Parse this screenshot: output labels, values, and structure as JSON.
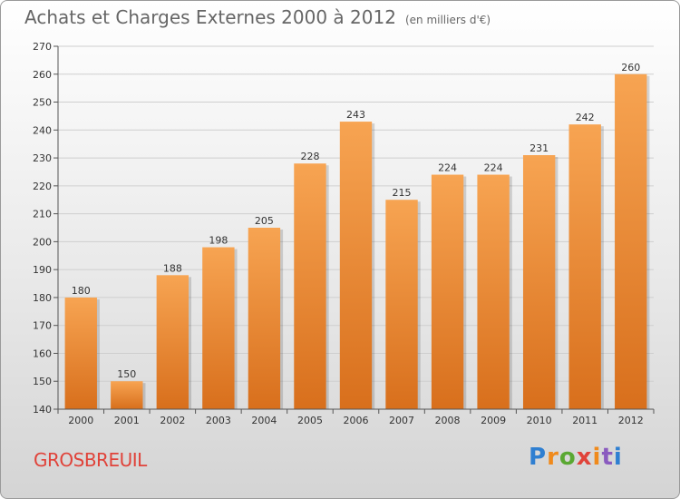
{
  "header": {
    "title": "Achats et Charges Externes 2000 à 2012",
    "unit": "(en milliers d'€)"
  },
  "footer": {
    "commune": "GROSBREUIL",
    "logo_letters": [
      "P",
      "r",
      "o",
      "x",
      "i",
      "t",
      "i"
    ]
  },
  "colors": {
    "bar_top": "#f7a452",
    "bar_bottom": "#d86f1c",
    "grid": "#cfcfcf",
    "axis": "#555555",
    "commune": "#e0433a"
  },
  "chart_data": {
    "type": "bar",
    "title": "Achats et Charges Externes 2000 à 2012",
    "subtitle": "(en milliers d'€)",
    "xlabel": "",
    "ylabel": "",
    "categories": [
      "2000",
      "2001",
      "2002",
      "2003",
      "2004",
      "2005",
      "2006",
      "2007",
      "2008",
      "2009",
      "2010",
      "2011",
      "2012"
    ],
    "values": [
      180,
      150,
      188,
      198,
      205,
      228,
      243,
      215,
      224,
      224,
      231,
      242,
      260
    ],
    "ylim": [
      140,
      270
    ],
    "yticks": [
      140,
      150,
      160,
      170,
      180,
      190,
      200,
      210,
      220,
      230,
      240,
      250,
      260,
      270
    ],
    "grid": true,
    "legend": "none"
  }
}
